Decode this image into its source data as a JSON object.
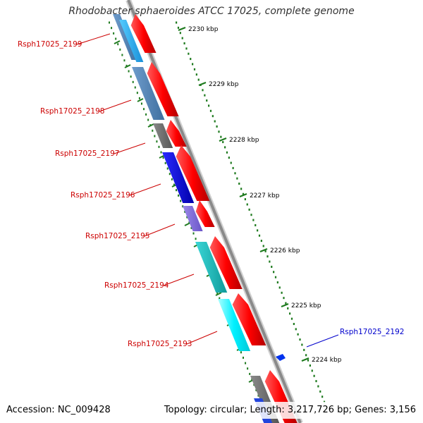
{
  "title": "Rhodobacter sphaeroides ATCC 17025, complete genome",
  "footer": {
    "accession": "Accession: NC_009428",
    "summary": "Topology: circular; Length: 3,217,726 bp; Genes: 3,156"
  },
  "colors": {
    "backbone": "#8a8a8a",
    "ruler": "#1e7a1e",
    "label_red": "#cc0000",
    "label_blue": "#0000cc"
  },
  "ruler_labels": [
    "2230 kbp",
    "2229 kbp",
    "2228 kbp",
    "2227 kbp",
    "2226 kbp",
    "2225 kbp",
    "2224 kbp"
  ],
  "gene_labels": [
    {
      "text": "Rsph17025_2199",
      "color": "red"
    },
    {
      "text": "Rsph17025_2198",
      "color": "red"
    },
    {
      "text": "Rsph17025_2197",
      "color": "red"
    },
    {
      "text": "Rsph17025_2196",
      "color": "red"
    },
    {
      "text": "Rsph17025_2195",
      "color": "red"
    },
    {
      "text": "Rsph17025_2194",
      "color": "red"
    },
    {
      "text": "Rsph17025_2193",
      "color": "red"
    },
    {
      "text": "Rsph17025_2192",
      "color": "blue"
    }
  ]
}
